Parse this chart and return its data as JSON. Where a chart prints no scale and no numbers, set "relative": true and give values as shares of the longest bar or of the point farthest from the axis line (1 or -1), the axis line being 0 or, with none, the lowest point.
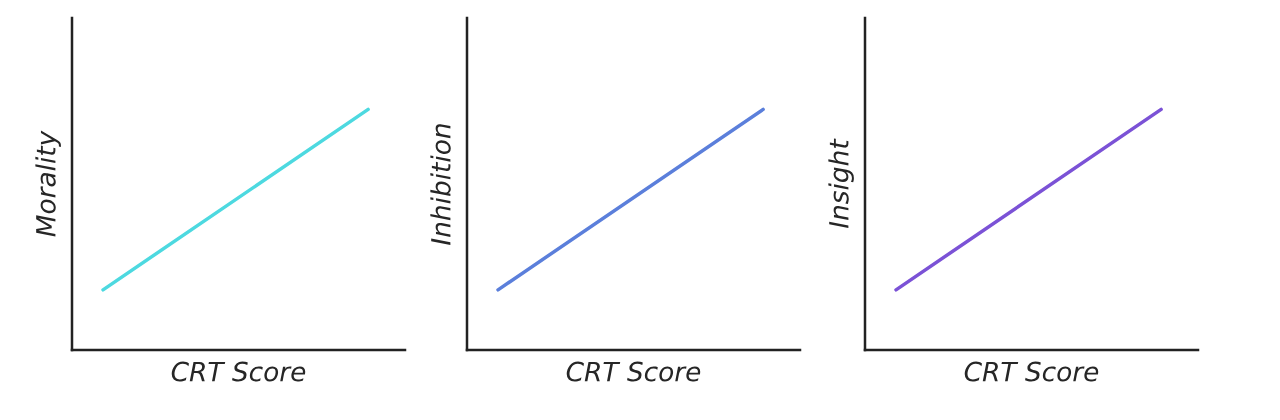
{
  "chart_data": [
    {
      "type": "line",
      "xlabel": "CRT Score",
      "ylabel": "Morality",
      "categories": [
        null,
        null
      ],
      "relative": true,
      "tick_labels": false,
      "grid": false,
      "series": [
        {
          "color": "#4dd9e0",
          "values": [
            0.25,
            1
          ]
        }
      ]
    },
    {
      "type": "line",
      "xlabel": "CRT Score",
      "ylabel": "Inhibition",
      "categories": [
        null,
        null
      ],
      "relative": true,
      "tick_labels": false,
      "grid": false,
      "series": [
        {
          "color": "#5b7fdb",
          "values": [
            0.25,
            1
          ]
        }
      ]
    },
    {
      "type": "line",
      "xlabel": "CRT Score",
      "ylabel": "Insight",
      "categories": [
        null,
        null
      ],
      "relative": true,
      "tick_labels": false,
      "grid": false,
      "series": [
        {
          "color": "#7b52d6",
          "values": [
            0.25,
            1
          ]
        }
      ]
    }
  ]
}
